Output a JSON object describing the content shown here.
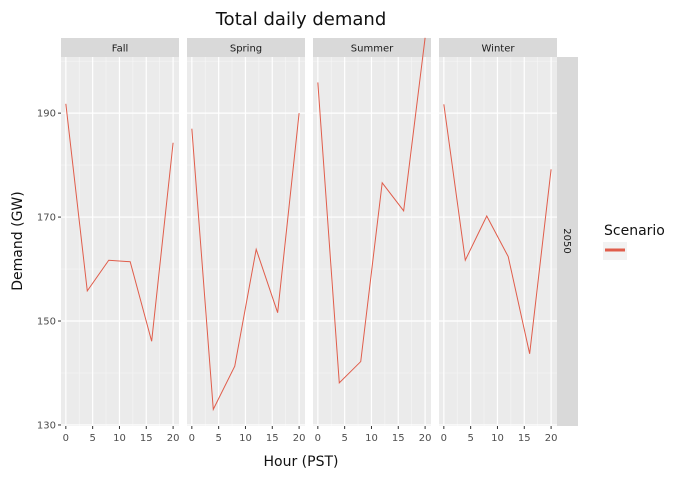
{
  "chart_data": {
    "type": "line",
    "title": "Total daily demand",
    "xlabel": "Hour (PST)",
    "ylabel": "Demand (GW)",
    "row_facet": "2050",
    "x": [
      0,
      4,
      8,
      12,
      16,
      20
    ],
    "xticks": [
      0,
      5,
      10,
      15,
      20
    ],
    "yticks": [
      130,
      150,
      170,
      190
    ],
    "xlim": [
      -0.9,
      21.1
    ],
    "ylim": [
      129.8,
      200.8
    ],
    "grid": true,
    "legend": {
      "title": "Scenario",
      "placement": "right",
      "color": "#e05d4b"
    },
    "panels": [
      {
        "name": "Fall",
        "values": [
          191.8,
          155.8,
          161.7,
          161.4,
          146.1,
          184.3
        ]
      },
      {
        "name": "Spring",
        "values": [
          187.0,
          133.0,
          141.3,
          163.8,
          151.6,
          190.0
        ]
      },
      {
        "name": "Summer",
        "values": [
          195.9,
          138.1,
          142.2,
          176.6,
          171.2,
          204.5
        ]
      },
      {
        "name": "Winter",
        "values": [
          191.7,
          161.7,
          170.2,
          162.4,
          143.7,
          179.2
        ]
      }
    ]
  }
}
